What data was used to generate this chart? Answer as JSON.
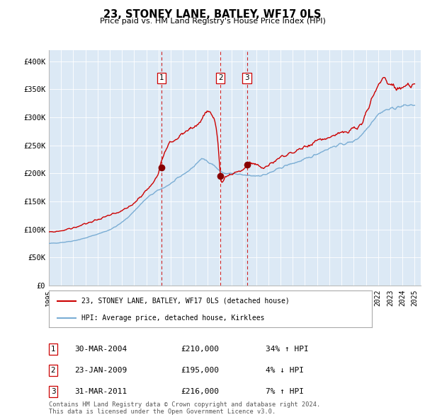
{
  "title": "23, STONEY LANE, BATLEY, WF17 0LS",
  "subtitle": "Price paid vs. HM Land Registry's House Price Index (HPI)",
  "legend_line1": "23, STONEY LANE, BATLEY, WF17 0LS (detached house)",
  "legend_line2": "HPI: Average price, detached house, Kirklees",
  "footnote": "Contains HM Land Registry data © Crown copyright and database right 2024.\nThis data is licensed under the Open Government Licence v3.0.",
  "sale_color": "#cc0000",
  "hpi_color": "#7aadd4",
  "bg_color": "#dce9f5",
  "dashed_color": "#cc0000",
  "marker_color": "#880000",
  "sales": [
    {
      "date": 2004.24,
      "price": 210000,
      "label": "1",
      "date_str": "30-MAR-2004",
      "pct": "34%",
      "dir": "↑"
    },
    {
      "date": 2009.07,
      "price": 195000,
      "label": "2",
      "date_str": "23-JAN-2009",
      "pct": "4%",
      "dir": "↓"
    },
    {
      "date": 2011.24,
      "price": 216000,
      "label": "3",
      "date_str": "31-MAR-2011",
      "pct": "7%",
      "dir": "↑"
    }
  ],
  "ylim": [
    0,
    420000
  ],
  "xlim": [
    1995.0,
    2025.5
  ],
  "yticks": [
    0,
    50000,
    100000,
    150000,
    200000,
    250000,
    300000,
    350000,
    400000
  ],
  "ytick_labels": [
    "£0",
    "£50K",
    "£100K",
    "£150K",
    "£200K",
    "£250K",
    "£300K",
    "£350K",
    "£400K"
  ],
  "hpi_key_points": [
    [
      1995.0,
      75000
    ],
    [
      1996.0,
      77000
    ],
    [
      1997.0,
      80000
    ],
    [
      1998.0,
      85000
    ],
    [
      1999.0,
      92000
    ],
    [
      2000.0,
      100000
    ],
    [
      2001.0,
      113000
    ],
    [
      2002.0,
      133000
    ],
    [
      2003.0,
      155000
    ],
    [
      2004.0,
      170000
    ],
    [
      2005.0,
      182000
    ],
    [
      2006.0,
      198000
    ],
    [
      2007.0,
      215000
    ],
    [
      2007.5,
      225000
    ],
    [
      2008.0,
      222000
    ],
    [
      2008.5,
      215000
    ],
    [
      2009.0,
      205000
    ],
    [
      2009.5,
      200000
    ],
    [
      2010.0,
      200000
    ],
    [
      2010.5,
      198000
    ],
    [
      2011.0,
      197000
    ],
    [
      2011.5,
      196000
    ],
    [
      2012.0,
      196000
    ],
    [
      2012.5,
      197000
    ],
    [
      2013.0,
      200000
    ],
    [
      2014.0,
      210000
    ],
    [
      2015.0,
      218000
    ],
    [
      2016.0,
      225000
    ],
    [
      2017.0,
      235000
    ],
    [
      2018.0,
      245000
    ],
    [
      2019.0,
      252000
    ],
    [
      2020.0,
      258000
    ],
    [
      2021.0,
      278000
    ],
    [
      2022.0,
      305000
    ],
    [
      2023.0,
      315000
    ],
    [
      2024.0,
      320000
    ],
    [
      2025.0,
      322000
    ]
  ],
  "red_key_points": [
    [
      1995.0,
      95000
    ],
    [
      1996.0,
      98000
    ],
    [
      1997.0,
      103000
    ],
    [
      1998.0,
      110000
    ],
    [
      1999.0,
      118000
    ],
    [
      2000.0,
      125000
    ],
    [
      2001.0,
      133000
    ],
    [
      2002.0,
      148000
    ],
    [
      2003.0,
      170000
    ],
    [
      2004.0,
      205000
    ],
    [
      2004.5,
      240000
    ],
    [
      2005.0,
      255000
    ],
    [
      2005.5,
      262000
    ],
    [
      2006.0,
      270000
    ],
    [
      2006.5,
      278000
    ],
    [
      2007.0,
      285000
    ],
    [
      2007.5,
      295000
    ],
    [
      2007.8,
      308000
    ],
    [
      2008.0,
      310000
    ],
    [
      2008.3,
      305000
    ],
    [
      2008.6,
      290000
    ],
    [
      2008.9,
      240000
    ],
    [
      2009.07,
      195000
    ],
    [
      2009.2,
      185000
    ],
    [
      2009.4,
      192000
    ],
    [
      2009.6,
      195000
    ],
    [
      2009.8,
      198000
    ],
    [
      2010.0,
      200000
    ],
    [
      2010.3,
      202000
    ],
    [
      2010.6,
      205000
    ],
    [
      2011.0,
      208000
    ],
    [
      2011.24,
      216000
    ],
    [
      2011.5,
      218000
    ],
    [
      2012.0,
      215000
    ],
    [
      2012.5,
      210000
    ],
    [
      2013.0,
      215000
    ],
    [
      2013.5,
      222000
    ],
    [
      2014.0,
      228000
    ],
    [
      2014.5,
      232000
    ],
    [
      2015.0,
      238000
    ],
    [
      2015.5,
      242000
    ],
    [
      2016.0,
      248000
    ],
    [
      2016.5,
      252000
    ],
    [
      2017.0,
      258000
    ],
    [
      2017.5,
      262000
    ],
    [
      2018.0,
      265000
    ],
    [
      2018.5,
      268000
    ],
    [
      2019.0,
      272000
    ],
    [
      2019.5,
      275000
    ],
    [
      2020.0,
      278000
    ],
    [
      2020.5,
      285000
    ],
    [
      2021.0,
      305000
    ],
    [
      2021.5,
      335000
    ],
    [
      2022.0,
      355000
    ],
    [
      2022.5,
      368000
    ],
    [
      2023.0,
      360000
    ],
    [
      2023.5,
      352000
    ],
    [
      2024.0,
      355000
    ],
    [
      2024.5,
      358000
    ],
    [
      2025.0,
      360000
    ]
  ]
}
